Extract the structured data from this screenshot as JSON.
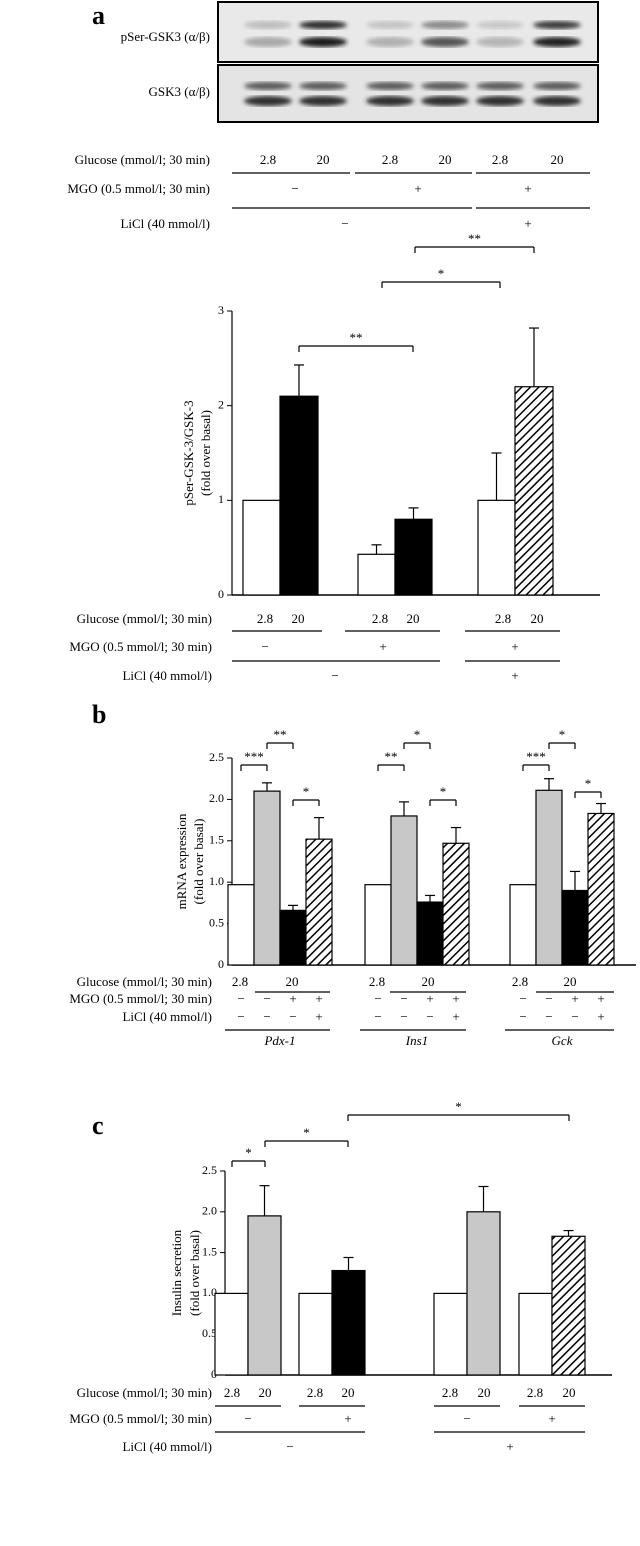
{
  "blot": {
    "rows": [
      "pSer-GSK3 (α/β)",
      "GSK3 (α/β)"
    ],
    "conditions": [
      {
        "label": "Glucose (mmol/l; 30 min)",
        "cells": [
          "2.8",
          "20",
          "2.8",
          "20",
          "2.8",
          "20"
        ]
      },
      {
        "label": "MGO (0.5 mmol/l; 30 min)",
        "cells": [
          "−",
          "+",
          "+"
        ]
      },
      {
        "label": "LiCl (40 mmol/l)",
        "cells": [
          "−",
          "+"
        ]
      }
    ]
  },
  "chart_data": [
    {
      "type": "bar",
      "panel": "a",
      "ylabel": [
        "pSer-GSK-3/GSK-3",
        "(fold over basal)"
      ],
      "values": [
        1.0,
        2.1,
        0.43,
        0.8,
        1.0,
        2.2
      ],
      "errors": [
        null,
        0.33,
        0.1,
        0.12,
        0.5,
        0.62
      ],
      "colors": [
        "#ffffff",
        "#000000",
        "#ffffff",
        "#000000",
        "#ffffff",
        "hatch"
      ],
      "ylim": [
        0,
        3
      ],
      "yticks": [
        0,
        1,
        2,
        3
      ],
      "annotations": [
        "**",
        "*",
        "**"
      ],
      "conditions": [
        {
          "label": "Glucose (mmol/l; 30 min)",
          "cells": [
            "2.8",
            "20",
            "2.8",
            "20",
            "2.8",
            "20"
          ]
        },
        {
          "label": "MGO (0.5 mmol/l; 30 min)",
          "cells": [
            "−",
            "+",
            "+"
          ]
        },
        {
          "label": "LiCl (40 mmol/l)",
          "cells": [
            "−",
            "+"
          ]
        }
      ]
    },
    {
      "type": "grouped-bar",
      "panel": "b",
      "ylabel": [
        "mRNA expression",
        "(fold over basal)"
      ],
      "categories": [
        "Pdx-1",
        "Ins1",
        "Gck"
      ],
      "series": [
        {
          "color": "#ffffff",
          "values": [
            0.97,
            0.97,
            0.97
          ],
          "errors": [
            null,
            null,
            null
          ]
        },
        {
          "color": "#c8c8c8",
          "values": [
            2.1,
            1.8,
            2.11
          ],
          "errors": [
            0.1,
            0.17,
            0.14
          ]
        },
        {
          "color": "#000000",
          "values": [
            0.66,
            0.76,
            0.9
          ],
          "errors": [
            0.06,
            0.08,
            0.23
          ]
        },
        {
          "color": "hatch",
          "values": [
            1.52,
            1.47,
            1.83
          ],
          "errors": [
            0.26,
            0.19,
            0.12
          ]
        }
      ],
      "ylim": [
        0,
        2.5
      ],
      "yticks": [
        0,
        0.5,
        {
          "value": 1,
          "label": "1.0"
        },
        1.5,
        {
          "value": 2,
          "label": "2.0"
        },
        2.5
      ],
      "annotations": [
        "***",
        "**",
        "*",
        "**",
        "*",
        "*",
        "***",
        "*",
        "*"
      ],
      "conditions": [
        {
          "label": "Glucose (mmol/l; 30 min)",
          "cells": [
            "2.8",
            "20",
            "2.8",
            "20",
            "2.8",
            "20"
          ]
        },
        {
          "label": "MGO (0.5 mmol/l; 30 min)",
          "cells": [
            "−",
            "−",
            "+",
            "+",
            "−",
            "−",
            "+",
            "+",
            "−",
            "−",
            "+",
            "+"
          ]
        },
        {
          "label": "LiCl (40 mmol/l)",
          "cells": [
            "−",
            "−",
            "−",
            "+",
            "−",
            "−",
            "−",
            "+",
            "−",
            "−",
            "−",
            "+"
          ]
        }
      ]
    },
    {
      "type": "bar",
      "panel": "c",
      "ylabel": [
        "Insulin secretion",
        "(fold over basal)"
      ],
      "values": [
        1.0,
        1.95,
        1.0,
        1.28,
        1.0,
        2.0,
        1.0,
        1.7
      ],
      "errors": [
        null,
        0.37,
        null,
        0.16,
        null,
        0.31,
        null,
        0.07
      ],
      "colors": [
        "#ffffff",
        "#c8c8c8",
        "#ffffff",
        "#000000",
        "#ffffff",
        "#c8c8c8",
        "#ffffff",
        "hatch"
      ],
      "ylim": [
        0,
        2.5
      ],
      "yticks": [
        0,
        0.5,
        {
          "value": 1,
          "label": "1.0"
        },
        1.5,
        {
          "value": 2,
          "label": "2.0"
        },
        2.5
      ],
      "annotations": [
        "*",
        "*",
        "*"
      ],
      "conditions": [
        {
          "label": "Glucose (mmol/l; 30 min)",
          "cells": [
            "2.8",
            "20",
            "2.8",
            "20",
            "2.8",
            "20",
            "2.8",
            "20"
          ]
        },
        {
          "label": "MGO (0.5 mmol/l; 30 min)",
          "cells": [
            "−",
            "+",
            "−",
            "+"
          ]
        },
        {
          "label": "LiCl (40 mmol/l)",
          "cells": [
            "−",
            "+"
          ]
        }
      ]
    }
  ]
}
